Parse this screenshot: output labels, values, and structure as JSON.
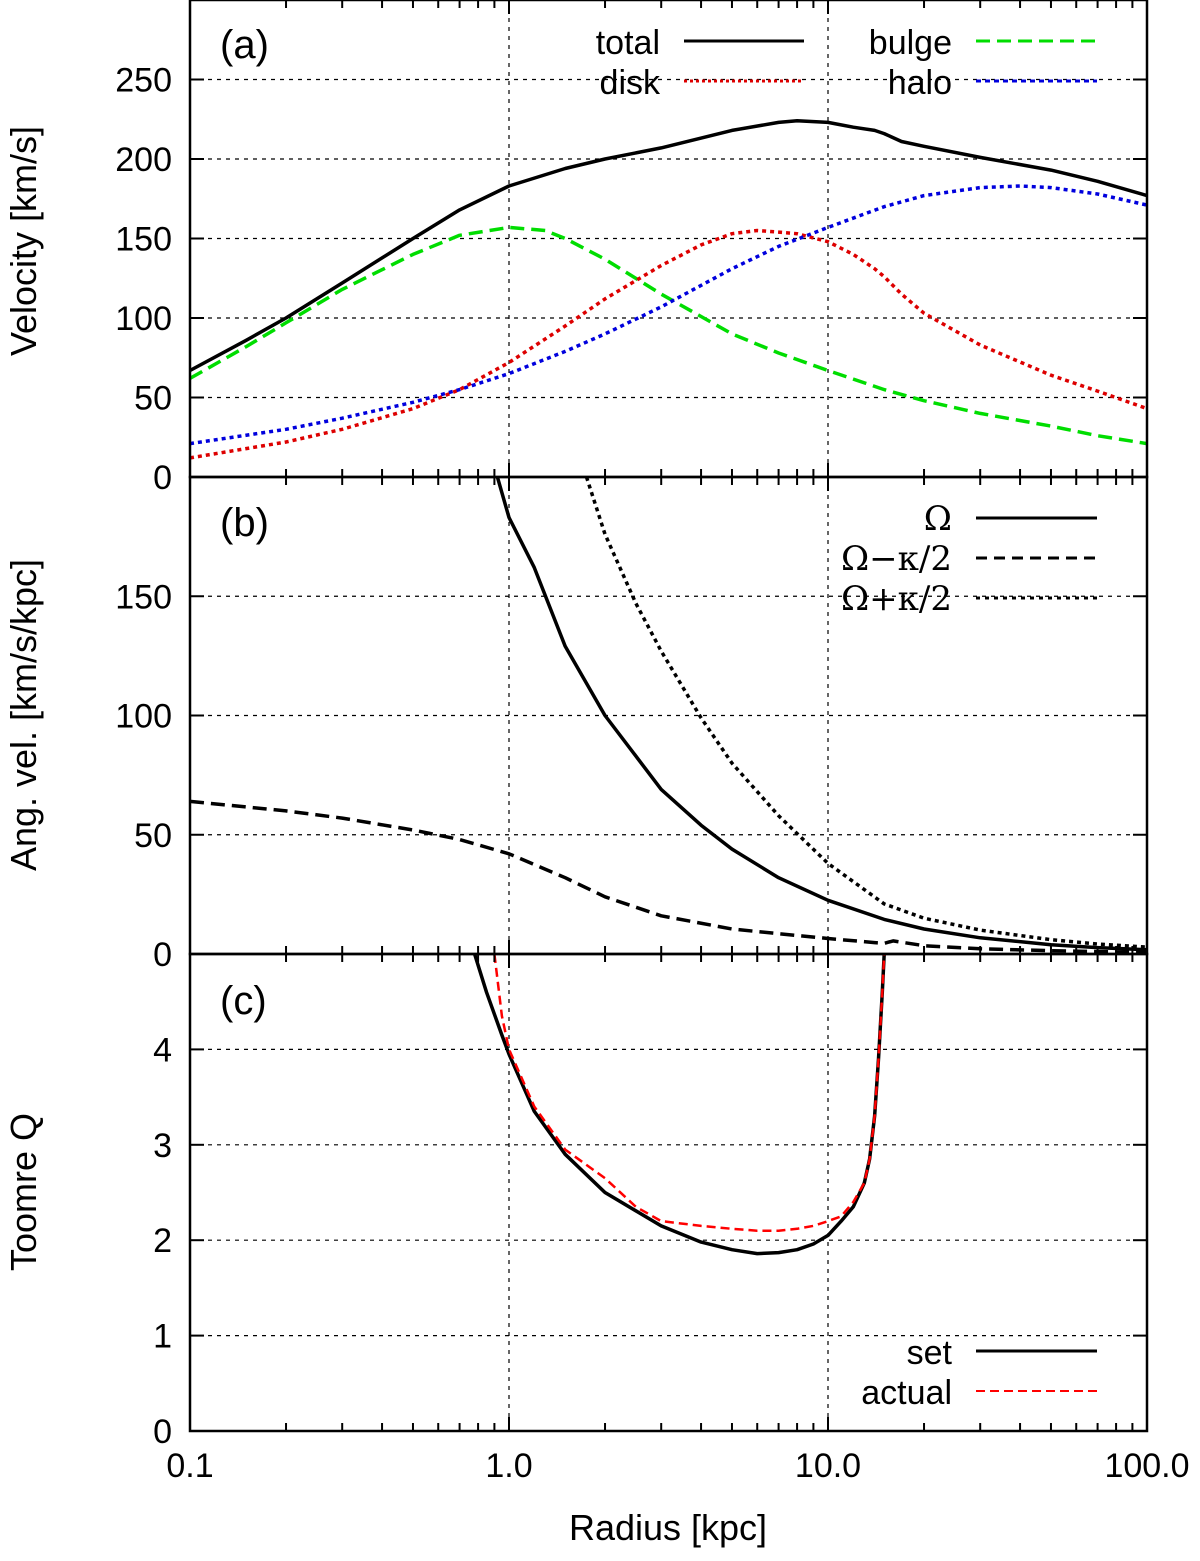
{
  "chart_data": [
    {
      "type": "line",
      "panel": "a",
      "title": "(a)",
      "xlabel": "",
      "ylabel": "Velocity [km/s]",
      "xscale": "log",
      "xlim": [
        0.1,
        100.0
      ],
      "ylim": [
        0,
        300
      ],
      "yticks": [
        0,
        50,
        100,
        150,
        200,
        250
      ],
      "legend_placement": "top-right, two columns",
      "series": [
        {
          "name": "total",
          "color": "#000000",
          "style": "solid",
          "x": [
            0.1,
            0.15,
            0.2,
            0.3,
            0.5,
            0.7,
            1.0,
            1.5,
            2.0,
            3.0,
            5.0,
            7.0,
            8.0,
            10.0,
            12.0,
            14.0,
            15.0,
            17.0,
            20.0,
            30.0,
            50.0,
            70.0,
            100.0
          ],
          "y": [
            67,
            86,
            100,
            122,
            150,
            168,
            183,
            194,
            200,
            207,
            218,
            223,
            224,
            223,
            220,
            218,
            216,
            211,
            208,
            201,
            193,
            186,
            177
          ]
        },
        {
          "name": "bulge",
          "color": "#00dd00",
          "style": "dashed",
          "x": [
            0.1,
            0.15,
            0.2,
            0.3,
            0.5,
            0.7,
            1.0,
            1.3,
            1.5,
            2.0,
            3.0,
            5.0,
            7.0,
            10.0,
            15.0,
            20.0,
            30.0,
            50.0,
            70.0,
            100.0
          ],
          "y": [
            62,
            82,
            97,
            118,
            140,
            152,
            157,
            155,
            150,
            137,
            115,
            90,
            78,
            67,
            55,
            48,
            40,
            32,
            26,
            21
          ]
        },
        {
          "name": "disk",
          "color": "#dd0000",
          "style": "dotted",
          "x": [
            0.1,
            0.2,
            0.3,
            0.5,
            0.7,
            1.0,
            1.5,
            2.0,
            3.0,
            4.0,
            5.0,
            6.0,
            7.0,
            8.0,
            10.0,
            12.0,
            14.0,
            15.0,
            17.0,
            20.0,
            30.0,
            50.0,
            70.0,
            100.0
          ],
          "y": [
            12,
            22,
            30,
            43,
            55,
            72,
            95,
            112,
            133,
            146,
            153,
            155,
            154,
            153,
            148,
            140,
            131,
            126,
            115,
            103,
            83,
            64,
            54,
            43
          ]
        },
        {
          "name": "halo",
          "color": "#0000dd",
          "style": "dotted",
          "x": [
            0.1,
            0.2,
            0.3,
            0.5,
            0.7,
            1.0,
            1.5,
            2.0,
            3.0,
            5.0,
            7.0,
            10.0,
            15.0,
            20.0,
            30.0,
            40.0,
            50.0,
            70.0,
            100.0
          ],
          "y": [
            21,
            30,
            37,
            47,
            55,
            65,
            79,
            90,
            107,
            131,
            145,
            157,
            170,
            177,
            182,
            183,
            182,
            178,
            171
          ]
        }
      ]
    },
    {
      "type": "line",
      "panel": "b",
      "title": "(b)",
      "xlabel": "",
      "ylabel": "Ang. vel. [km/s/kpc]",
      "xscale": "log",
      "xlim": [
        0.1,
        100.0
      ],
      "ylim": [
        0,
        200
      ],
      "yticks": [
        0,
        50,
        100,
        150
      ],
      "legend_placement": "top-right",
      "series": [
        {
          "name": "Ω",
          "color": "#000000",
          "style": "solid",
          "x": [
            0.92,
            1.0,
            1.2,
            1.5,
            2.0,
            3.0,
            4.0,
            5.0,
            7.0,
            10.0,
            15.0,
            20.0,
            30.0,
            50.0,
            70.0,
            100.0
          ],
          "y": [
            200,
            183,
            162,
            129,
            100,
            69,
            54,
            44,
            32,
            22.5,
            14.5,
            10.5,
            6.8,
            3.9,
            2.7,
            1.8
          ]
        },
        {
          "name": "Ω−κ/2",
          "color": "#000000",
          "style": "dashed",
          "x": [
            0.1,
            0.2,
            0.3,
            0.5,
            0.7,
            1.0,
            1.5,
            2.0,
            3.0,
            5.0,
            7.0,
            10.0,
            14.0,
            15.0,
            16.0,
            20.0,
            30.0,
            50.0,
            70.0,
            100.0
          ],
          "y": [
            64,
            60,
            57,
            52,
            48,
            42,
            32,
            24,
            16,
            10.5,
            8.5,
            6.5,
            4.8,
            4.5,
            5.5,
            3.5,
            2.2,
            1.4,
            1.0,
            0.7
          ]
        },
        {
          "name": "Ω+κ/2",
          "color": "#000000",
          "style": "dotted",
          "x": [
            1.75,
            2.0,
            2.5,
            3.0,
            4.0,
            5.0,
            7.0,
            10.0,
            15.0,
            20.0,
            30.0,
            50.0,
            70.0,
            100.0
          ],
          "y": [
            200,
            176,
            147,
            127,
            99,
            80,
            58,
            38,
            21,
            15,
            10,
            6,
            4.2,
            2.9
          ]
        }
      ]
    },
    {
      "type": "line",
      "panel": "c",
      "title": "(c)",
      "xlabel": "Radius [kpc]",
      "ylabel": "Toomre Q",
      "xscale": "log",
      "xlim": [
        0.1,
        100.0
      ],
      "ylim": [
        0,
        5
      ],
      "yticks": [
        0,
        1,
        2,
        3,
        4
      ],
      "xticks": [
        "0.1",
        "1.0",
        "10.0",
        "100.0"
      ],
      "legend_placement": "bottom-right",
      "series": [
        {
          "name": "set",
          "color": "#000000",
          "style": "solid",
          "x": [
            0.78,
            0.85,
            0.95,
            1.0,
            1.2,
            1.5,
            2.0,
            3.0,
            4.0,
            5.0,
            6.0,
            7.0,
            8.0,
            9.0,
            10.0,
            11.0,
            12.0,
            13.0,
            13.5,
            14.0,
            14.4,
            14.8,
            15.0
          ],
          "y": [
            5.0,
            4.6,
            4.15,
            3.95,
            3.35,
            2.9,
            2.5,
            2.15,
            1.98,
            1.9,
            1.86,
            1.87,
            1.9,
            1.96,
            2.05,
            2.2,
            2.35,
            2.6,
            2.85,
            3.3,
            3.9,
            4.6,
            5.0
          ]
        },
        {
          "name": "actual",
          "color": "#ff0000",
          "style": "dashed",
          "x": [
            0.9,
            0.95,
            1.0,
            1.2,
            1.5,
            2.0,
            2.5,
            3.0,
            4.0,
            5.0,
            6.0,
            7.0,
            8.0,
            9.0,
            10.0,
            11.0,
            12.0,
            13.0,
            13.5,
            14.0,
            14.4,
            14.8,
            15.0
          ],
          "y": [
            5.0,
            4.35,
            4.0,
            3.4,
            2.95,
            2.65,
            2.35,
            2.2,
            2.15,
            2.12,
            2.1,
            2.1,
            2.12,
            2.15,
            2.2,
            2.25,
            2.4,
            2.6,
            2.85,
            3.3,
            3.9,
            4.6,
            5.0
          ]
        }
      ]
    }
  ]
}
